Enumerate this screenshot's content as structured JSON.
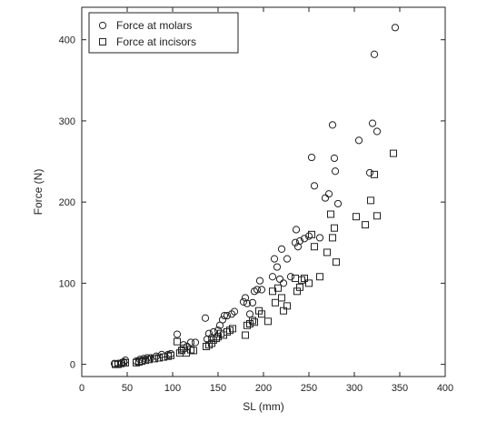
{
  "chart_data": {
    "type": "scatter",
    "xlabel": "SL (mm)",
    "ylabel": "Force (N)",
    "xlim": [
      0,
      400
    ],
    "ylim": [
      -15,
      440
    ],
    "xticks": [
      0,
      50,
      100,
      150,
      200,
      250,
      300,
      350,
      400
    ],
    "yticks": [
      0,
      100,
      200,
      300,
      400
    ],
    "grid": false,
    "legend_position": "top-left",
    "series": [
      {
        "name": "Force at molars",
        "marker": "circle",
        "color": "#222222",
        "points": [
          [
            36,
            1
          ],
          [
            40,
            1
          ],
          [
            44,
            2
          ],
          [
            46,
            3
          ],
          [
            48,
            5
          ],
          [
            60,
            4
          ],
          [
            64,
            6
          ],
          [
            68,
            7
          ],
          [
            72,
            8
          ],
          [
            76,
            8
          ],
          [
            82,
            10
          ],
          [
            88,
            12
          ],
          [
            95,
            12
          ],
          [
            98,
            13
          ],
          [
            105,
            37
          ],
          [
            110,
            18
          ],
          [
            112,
            24
          ],
          [
            116,
            22
          ],
          [
            120,
            27
          ],
          [
            125,
            27
          ],
          [
            136,
            57
          ],
          [
            138,
            31
          ],
          [
            140,
            38
          ],
          [
            143,
            33
          ],
          [
            145,
            40
          ],
          [
            150,
            42
          ],
          [
            152,
            48
          ],
          [
            155,
            55
          ],
          [
            157,
            60
          ],
          [
            160,
            60
          ],
          [
            165,
            62
          ],
          [
            168,
            65
          ],
          [
            178,
            77
          ],
          [
            180,
            82
          ],
          [
            182,
            75
          ],
          [
            185,
            62
          ],
          [
            188,
            76
          ],
          [
            190,
            90
          ],
          [
            193,
            92
          ],
          [
            196,
            103
          ],
          [
            198,
            92
          ],
          [
            210,
            108
          ],
          [
            212,
            130
          ],
          [
            215,
            120
          ],
          [
            218,
            105
          ],
          [
            220,
            142
          ],
          [
            222,
            100
          ],
          [
            226,
            130
          ],
          [
            230,
            108
          ],
          [
            235,
            150
          ],
          [
            236,
            166
          ],
          [
            238,
            145
          ],
          [
            240,
            152
          ],
          [
            245,
            155
          ],
          [
            250,
            158
          ],
          [
            253,
            255
          ],
          [
            256,
            220
          ],
          [
            262,
            156
          ],
          [
            268,
            205
          ],
          [
            272,
            210
          ],
          [
            276,
            295
          ],
          [
            278,
            254
          ],
          [
            279,
            238
          ],
          [
            282,
            198
          ],
          [
            305,
            276
          ],
          [
            317,
            236
          ],
          [
            320,
            297
          ],
          [
            322,
            382
          ],
          [
            325,
            287
          ],
          [
            345,
            415
          ]
        ]
      },
      {
        "name": "Force at incisors",
        "marker": "square",
        "color": "#222222",
        "points": [
          [
            37,
            0
          ],
          [
            40,
            0
          ],
          [
            43,
            1
          ],
          [
            46,
            2
          ],
          [
            48,
            2
          ],
          [
            60,
            2
          ],
          [
            63,
            3
          ],
          [
            66,
            4
          ],
          [
            70,
            5
          ],
          [
            74,
            6
          ],
          [
            80,
            7
          ],
          [
            85,
            8
          ],
          [
            90,
            9
          ],
          [
            95,
            10
          ],
          [
            98,
            11
          ],
          [
            105,
            28
          ],
          [
            108,
            14
          ],
          [
            110,
            17
          ],
          [
            112,
            20
          ],
          [
            115,
            14
          ],
          [
            120,
            18
          ],
          [
            123,
            17
          ],
          [
            137,
            22
          ],
          [
            140,
            24
          ],
          [
            143,
            26
          ],
          [
            145,
            30
          ],
          [
            148,
            32
          ],
          [
            150,
            34
          ],
          [
            153,
            38
          ],
          [
            156,
            36
          ],
          [
            160,
            40
          ],
          [
            163,
            42
          ],
          [
            166,
            44
          ],
          [
            180,
            36
          ],
          [
            182,
            48
          ],
          [
            185,
            50
          ],
          [
            188,
            54
          ],
          [
            190,
            52
          ],
          [
            195,
            66
          ],
          [
            198,
            62
          ],
          [
            205,
            53
          ],
          [
            210,
            90
          ],
          [
            213,
            76
          ],
          [
            216,
            94
          ],
          [
            220,
            82
          ],
          [
            222,
            66
          ],
          [
            226,
            72
          ],
          [
            235,
            106
          ],
          [
            237,
            90
          ],
          [
            240,
            95
          ],
          [
            242,
            104
          ],
          [
            245,
            106
          ],
          [
            250,
            100
          ],
          [
            253,
            160
          ],
          [
            256,
            145
          ],
          [
            262,
            108
          ],
          [
            270,
            138
          ],
          [
            274,
            185
          ],
          [
            276,
            156
          ],
          [
            278,
            168
          ],
          [
            280,
            126
          ],
          [
            302,
            182
          ],
          [
            312,
            172
          ],
          [
            318,
            202
          ],
          [
            322,
            234
          ],
          [
            325,
            183
          ],
          [
            343,
            260
          ]
        ]
      }
    ]
  }
}
